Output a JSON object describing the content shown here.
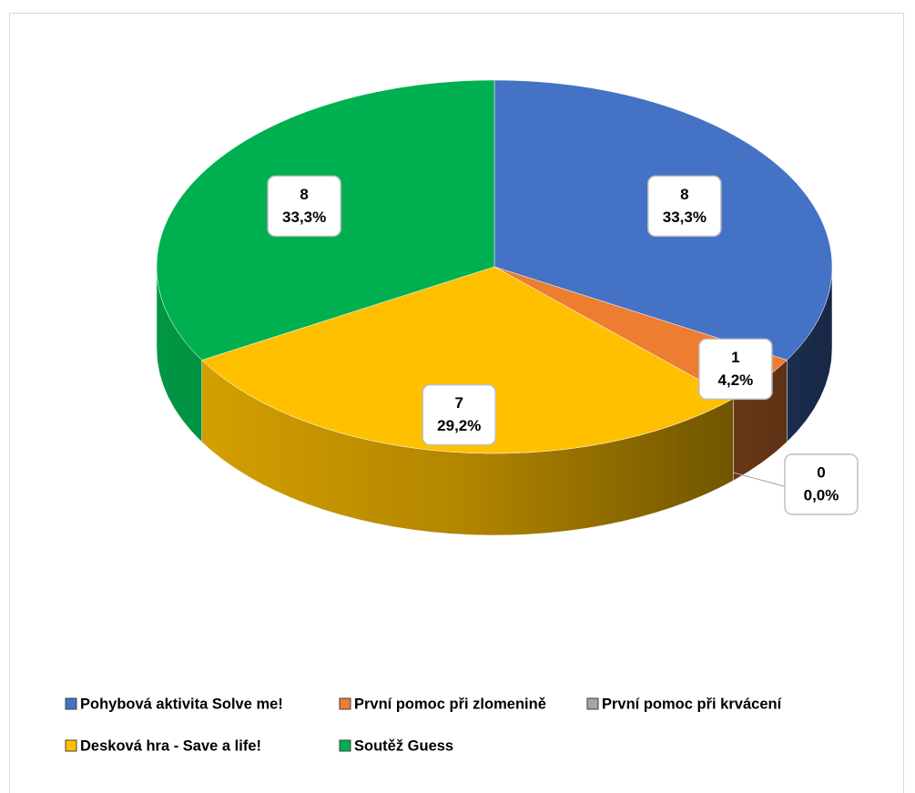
{
  "chart_data": {
    "type": "pie",
    "three_d": true,
    "categories": [
      "Pohybová aktivita Solve me!",
      "První pomoc při zlomenině",
      "První pomoc při krvácení",
      "Desková hra - Save a life!",
      "Soutěž Guess"
    ],
    "values": [
      8,
      1,
      0,
      7,
      8
    ],
    "percent_labels": [
      "33,3%",
      "4,2%",
      "0,0%",
      "29,2%",
      "33,3%"
    ],
    "colors": [
      "#4472c4",
      "#ed7d31",
      "#a5a5a5",
      "#ffc000",
      "#00b050"
    ],
    "legend": "bottom"
  }
}
